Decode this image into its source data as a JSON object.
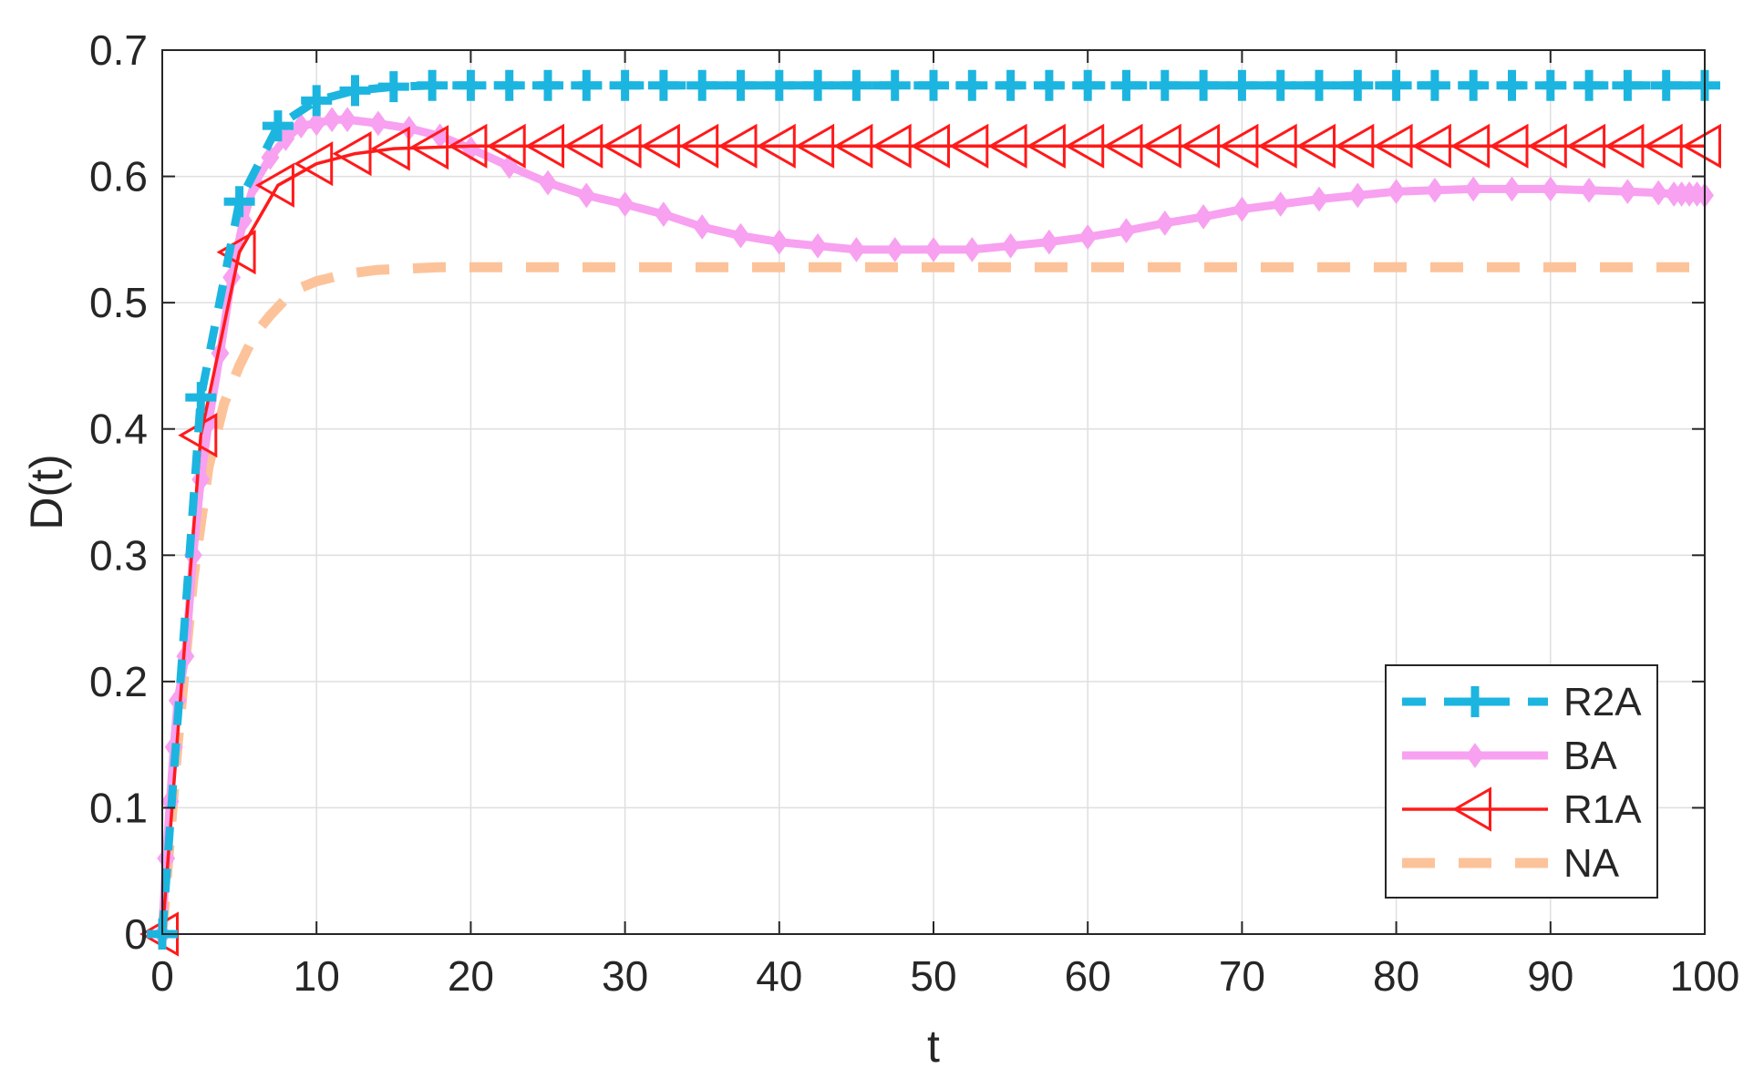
{
  "chart_data": {
    "type": "line",
    "title": "",
    "xlabel": "t",
    "ylabel": "D(t)",
    "xlim": [
      0,
      100
    ],
    "ylim": [
      0,
      0.7
    ],
    "xticks": [
      0,
      10,
      20,
      30,
      40,
      50,
      60,
      70,
      80,
      90,
      100
    ],
    "yticks": [
      0,
      0.1,
      0.2,
      0.3,
      0.4,
      0.5,
      0.6,
      0.7
    ],
    "xtick_labels": [
      "0",
      "10",
      "20",
      "30",
      "40",
      "50",
      "60",
      "70",
      "80",
      "90",
      "100"
    ],
    "ytick_labels": [
      "0",
      "0.1",
      "0.2",
      "0.3",
      "0.4",
      "0.5",
      "0.6",
      "0.7"
    ],
    "grid": true,
    "legend_position": "bottom-right",
    "series": [
      {
        "name": "R2A",
        "color": "#1cb5e0",
        "line_style": "dashed",
        "marker": "plus",
        "x": [
          0,
          2.5,
          5,
          7.5,
          10,
          12.5,
          15,
          17.5,
          20,
          22.5,
          25,
          27.5,
          30,
          32.5,
          35,
          37.5,
          40,
          42.5,
          45,
          47.5,
          50,
          52.5,
          55,
          57.5,
          60,
          62.5,
          65,
          67.5,
          70,
          72.5,
          75,
          77.5,
          80,
          82.5,
          85,
          87.5,
          90,
          92.5,
          95,
          97.5,
          100
        ],
        "y": [
          0,
          0.425,
          0.58,
          0.64,
          0.66,
          0.668,
          0.671,
          0.672,
          0.672,
          0.672,
          0.672,
          0.672,
          0.672,
          0.672,
          0.672,
          0.672,
          0.672,
          0.672,
          0.672,
          0.672,
          0.672,
          0.672,
          0.672,
          0.672,
          0.672,
          0.672,
          0.672,
          0.672,
          0.672,
          0.672,
          0.672,
          0.672,
          0.672,
          0.672,
          0.672,
          0.672,
          0.672,
          0.672,
          0.672,
          0.672,
          0.672
        ]
      },
      {
        "name": "BA",
        "color": "#f7a1f0",
        "line_style": "solid",
        "marker": "diamond",
        "x": [
          0,
          0.25,
          0.5,
          0.75,
          1,
          1.5,
          2,
          2.5,
          3,
          3.75,
          4.5,
          5.25,
          6,
          7,
          8,
          9,
          10,
          11,
          12,
          14,
          16,
          18,
          20,
          22.5,
          25,
          27.5,
          30,
          32.5,
          35,
          37.5,
          40,
          42.5,
          45,
          47.5,
          50,
          52.5,
          55,
          57.5,
          60,
          62.5,
          65,
          67.5,
          70,
          72.5,
          75,
          77.5,
          80,
          82.5,
          85,
          87.5,
          90,
          92.5,
          95,
          97,
          98,
          98.5,
          99,
          99.5,
          100
        ],
        "y": [
          0,
          0.06,
          0.105,
          0.148,
          0.185,
          0.22,
          0.3,
          0.36,
          0.405,
          0.46,
          0.52,
          0.565,
          0.595,
          0.615,
          0.63,
          0.64,
          0.642,
          0.645,
          0.645,
          0.642,
          0.638,
          0.632,
          0.622,
          0.608,
          0.595,
          0.585,
          0.578,
          0.57,
          0.56,
          0.553,
          0.548,
          0.545,
          0.542,
          0.542,
          0.542,
          0.542,
          0.545,
          0.548,
          0.552,
          0.557,
          0.563,
          0.568,
          0.574,
          0.578,
          0.582,
          0.585,
          0.588,
          0.589,
          0.59,
          0.59,
          0.59,
          0.589,
          0.588,
          0.587,
          0.586,
          0.586,
          0.586,
          0.586,
          0.585
        ]
      },
      {
        "name": "R1A",
        "color": "#ff1a1a",
        "line_style": "solid",
        "marker": "triangle-left",
        "x": [
          0,
          2.5,
          5,
          7.5,
          10,
          12.5,
          15,
          17.5,
          20,
          22.5,
          25,
          27.5,
          30,
          32.5,
          35,
          37.5,
          40,
          42.5,
          45,
          47.5,
          50,
          52.5,
          55,
          57.5,
          60,
          62.5,
          65,
          67.5,
          70,
          72.5,
          75,
          77.5,
          80,
          82.5,
          85,
          87.5,
          90,
          92.5,
          95,
          97.5,
          100
        ],
        "y": [
          0,
          0.395,
          0.54,
          0.593,
          0.61,
          0.618,
          0.622,
          0.623,
          0.624,
          0.624,
          0.624,
          0.624,
          0.624,
          0.624,
          0.624,
          0.624,
          0.624,
          0.624,
          0.624,
          0.624,
          0.624,
          0.624,
          0.624,
          0.624,
          0.624,
          0.624,
          0.624,
          0.624,
          0.624,
          0.624,
          0.624,
          0.624,
          0.624,
          0.624,
          0.624,
          0.624,
          0.624,
          0.624,
          0.624,
          0.624,
          0.624
        ]
      },
      {
        "name": "NA",
        "color": "#fcc39a",
        "line_style": "dashed",
        "marker": "none",
        "x": [
          0,
          1,
          2,
          3,
          4,
          5,
          6,
          7,
          8,
          9,
          10,
          12,
          14,
          16,
          18,
          20,
          25,
          30,
          40,
          50,
          60,
          70,
          80,
          90,
          100
        ],
        "y": [
          0,
          0.15,
          0.28,
          0.37,
          0.42,
          0.45,
          0.475,
          0.49,
          0.503,
          0.512,
          0.517,
          0.523,
          0.526,
          0.527,
          0.528,
          0.528,
          0.528,
          0.528,
          0.528,
          0.528,
          0.528,
          0.528,
          0.528,
          0.528,
          0.528
        ]
      }
    ]
  }
}
